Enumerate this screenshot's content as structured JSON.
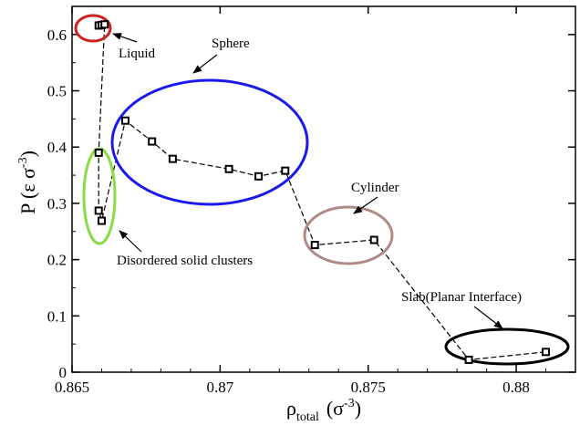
{
  "chart_data": {
    "type": "scatter",
    "xlabel": "ρ",
    "xlabel_sub": "total",
    "xlabel_unit": "(σ",
    "xlabel_unit_sup": "-3",
    "xlabel_close": ")",
    "ylabel": "P  (ε σ",
    "ylabel_sup": "-3",
    "ylabel_close": ")",
    "xlim": [
      0.865,
      0.882
    ],
    "ylim": [
      0,
      0.65
    ],
    "xticks": [
      {
        "v": 0.865,
        "label": "0.865"
      },
      {
        "v": 0.87,
        "label": "0.87"
      },
      {
        "v": 0.875,
        "label": "0.875"
      },
      {
        "v": 0.88,
        "label": "0.88"
      }
    ],
    "yticks": [
      {
        "v": 0,
        "label": "0"
      },
      {
        "v": 0.1,
        "label": "0.1"
      },
      {
        "v": 0.2,
        "label": "0.2"
      },
      {
        "v": 0.3,
        "label": "0.3"
      },
      {
        "v": 0.4,
        "label": "0.4"
      },
      {
        "v": 0.5,
        "label": "0.5"
      },
      {
        "v": 0.6,
        "label": "0.6"
      }
    ],
    "grid": false,
    "series": [
      {
        "line_style": "dashed",
        "marker": "square",
        "points": [
          [
            0.8659,
            0.616
          ],
          [
            0.866,
            0.617
          ],
          [
            0.8661,
            0.618
          ],
          [
            0.8659,
            0.39
          ],
          [
            0.8659,
            0.287
          ],
          [
            0.866,
            0.269
          ],
          [
            0.8668,
            0.447
          ],
          [
            0.8677,
            0.41
          ],
          [
            0.8684,
            0.379
          ],
          [
            0.8703,
            0.361
          ],
          [
            0.8713,
            0.348
          ],
          [
            0.8722,
            0.358
          ],
          [
            0.8732,
            0.226
          ],
          [
            0.8752,
            0.235
          ],
          [
            0.8784,
            0.022
          ],
          [
            0.881,
            0.036
          ]
        ]
      }
    ],
    "regions": [
      {
        "label": "Liquid",
        "color": "#cc2222"
      },
      {
        "label": "Sphere",
        "color": "#1a1aee"
      },
      {
        "label": "Disordered solid clusters",
        "color": "#88dd44"
      },
      {
        "label": "Cylinder",
        "color": "#b08a88"
      },
      {
        "label": "Slab(Planar Interface)",
        "color": "#000000"
      }
    ]
  }
}
